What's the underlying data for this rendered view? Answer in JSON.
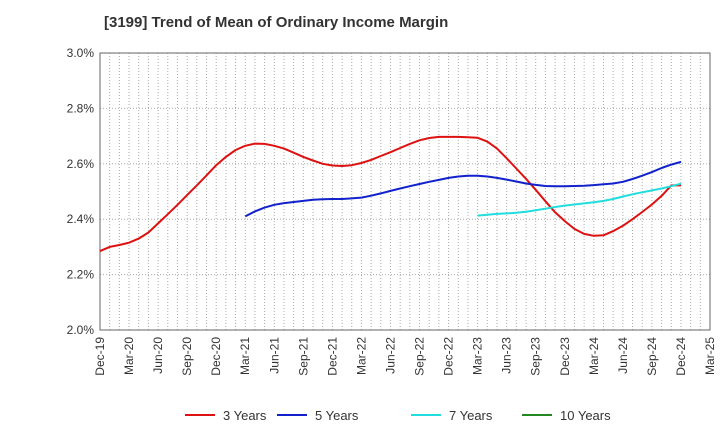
{
  "chart_data": {
    "type": "line",
    "title": "[3199]  Trend of Mean of Ordinary Income Margin",
    "xlabel": "",
    "ylabel": "",
    "x_ticks": [
      "Dec-19",
      "Mar-20",
      "Jun-20",
      "Sep-20",
      "Dec-20",
      "Mar-21",
      "Jun-21",
      "Sep-21",
      "Dec-21",
      "Mar-22",
      "Jun-22",
      "Sep-22",
      "Dec-22",
      "Mar-23",
      "Jun-23",
      "Sep-23",
      "Dec-23",
      "Mar-24",
      "Jun-24",
      "Sep-24",
      "Dec-24",
      "Mar-25"
    ],
    "y_ticks": [
      "2.0%",
      "2.2%",
      "2.4%",
      "2.6%",
      "2.8%",
      "3.0%"
    ],
    "ylim": [
      2.0,
      3.0
    ],
    "grid": true,
    "legend_position": "bottom",
    "series": [
      {
        "name": "3 Years",
        "color": "#dd1111",
        "x": [
          "Dec-19",
          "Jan-20",
          "Feb-20",
          "Mar-20",
          "Apr-20",
          "May-20",
          "Jun-20",
          "Jul-20",
          "Aug-20",
          "Sep-20",
          "Oct-20",
          "Nov-20",
          "Dec-20",
          "Jan-21",
          "Feb-21",
          "Mar-21",
          "Apr-21",
          "May-21",
          "Jun-21",
          "Jul-21",
          "Aug-21",
          "Sep-21",
          "Oct-21",
          "Nov-21",
          "Dec-21",
          "Jan-22",
          "Feb-22",
          "Mar-22",
          "Apr-22",
          "May-22",
          "Jun-22",
          "Jul-22",
          "Aug-22",
          "Sep-22",
          "Oct-22",
          "Nov-22",
          "Dec-22",
          "Jan-23",
          "Feb-23",
          "Mar-23",
          "Apr-23",
          "May-23",
          "Jun-23",
          "Jul-23",
          "Aug-23",
          "Sep-23",
          "Oct-23",
          "Nov-23",
          "Dec-23",
          "Jan-24",
          "Feb-24",
          "Mar-24",
          "Apr-24",
          "May-24",
          "Jun-24",
          "Jul-24",
          "Aug-24",
          "Sep-24",
          "Oct-24",
          "Nov-24",
          "Dec-24"
        ],
        "values": [
          2.285,
          2.3,
          2.307,
          2.315,
          2.33,
          2.352,
          2.385,
          2.418,
          2.452,
          2.487,
          2.522,
          2.558,
          2.595,
          2.625,
          2.65,
          2.665,
          2.673,
          2.672,
          2.665,
          2.655,
          2.64,
          2.625,
          2.612,
          2.6,
          2.594,
          2.592,
          2.595,
          2.603,
          2.614,
          2.628,
          2.642,
          2.657,
          2.672,
          2.685,
          2.693,
          2.697,
          2.697,
          2.697,
          2.696,
          2.694,
          2.68,
          2.655,
          2.62,
          2.583,
          2.546,
          2.506,
          2.465,
          2.425,
          2.393,
          2.365,
          2.347,
          2.34,
          2.342,
          2.357,
          2.376,
          2.4,
          2.426,
          2.453,
          2.484,
          2.522,
          2.522
        ]
      },
      {
        "name": "5 Years",
        "color": "#1122cc",
        "x": [
          "Mar-21",
          "Apr-21",
          "May-21",
          "Jun-21",
          "Jul-21",
          "Aug-21",
          "Sep-21",
          "Oct-21",
          "Nov-21",
          "Dec-21",
          "Jan-22",
          "Feb-22",
          "Mar-22",
          "Apr-22",
          "May-22",
          "Jun-22",
          "Jul-22",
          "Aug-22",
          "Sep-22",
          "Oct-22",
          "Nov-22",
          "Dec-22",
          "Jan-23",
          "Feb-23",
          "Mar-23",
          "Apr-23",
          "May-23",
          "Jun-23",
          "Jul-23",
          "Aug-23",
          "Sep-23",
          "Oct-23",
          "Nov-23",
          "Dec-23",
          "Jan-24",
          "Feb-24",
          "Mar-24",
          "Apr-24",
          "May-24",
          "Jun-24",
          "Jul-24",
          "Aug-24",
          "Sep-24",
          "Oct-24",
          "Nov-24",
          "Dec-24"
        ],
        "values": [
          2.41,
          2.428,
          2.442,
          2.452,
          2.458,
          2.462,
          2.466,
          2.47,
          2.472,
          2.473,
          2.473,
          2.475,
          2.478,
          2.485,
          2.493,
          2.502,
          2.511,
          2.519,
          2.527,
          2.535,
          2.542,
          2.549,
          2.554,
          2.557,
          2.557,
          2.554,
          2.549,
          2.543,
          2.536,
          2.529,
          2.524,
          2.52,
          2.519,
          2.519,
          2.52,
          2.521,
          2.523,
          2.526,
          2.529,
          2.535,
          2.545,
          2.557,
          2.57,
          2.585,
          2.597,
          2.607
        ]
      },
      {
        "name": "7 Years",
        "color": "#22dddd",
        "x": [
          "Mar-23",
          "Apr-23",
          "May-23",
          "Jun-23",
          "Jul-23",
          "Aug-23",
          "Sep-23",
          "Oct-23",
          "Nov-23",
          "Dec-23",
          "Jan-24",
          "Feb-24",
          "Mar-24",
          "Apr-24",
          "May-24",
          "Jun-24",
          "Jul-24",
          "Aug-24",
          "Sep-24",
          "Oct-24",
          "Nov-24",
          "Dec-24"
        ],
        "values": [
          2.413,
          2.416,
          2.419,
          2.421,
          2.423,
          2.427,
          2.432,
          2.438,
          2.444,
          2.449,
          2.453,
          2.457,
          2.461,
          2.466,
          2.473,
          2.482,
          2.49,
          2.497,
          2.504,
          2.511,
          2.519,
          2.528
        ]
      },
      {
        "name": "10 Years",
        "color": "#228822",
        "x": [],
        "values": []
      }
    ]
  }
}
